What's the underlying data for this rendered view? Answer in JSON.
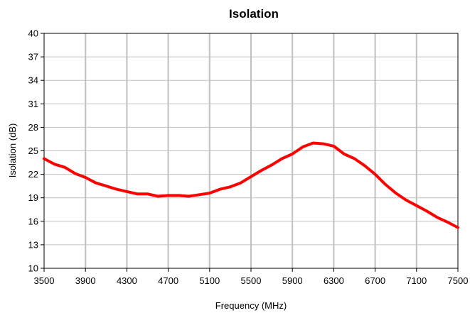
{
  "chart_data": {
    "type": "line",
    "title": "Isolation",
    "xlabel": "Frequency (MHz)",
    "ylabel": "Isolation (dB)",
    "xlim": [
      3500,
      7500
    ],
    "ylim": [
      10,
      40
    ],
    "xticks": [
      3500,
      3900,
      4300,
      4700,
      5100,
      5500,
      5900,
      6300,
      6700,
      7100,
      7500
    ],
    "yticks": [
      10,
      13,
      16,
      19,
      22,
      25,
      28,
      31,
      34,
      37,
      40
    ],
    "grid": {
      "vertical": true,
      "horizontal": true
    },
    "legend": "none",
    "colors": {
      "line": "#ff0000",
      "grid": "#c0c0c0",
      "frame": "#000000"
    },
    "series": [
      {
        "x": [
          3500,
          3600,
          3700,
          3800,
          3900,
          4000,
          4100,
          4200,
          4300,
          4400,
          4500,
          4600,
          4700,
          4800,
          4900,
          5000,
          5100,
          5200,
          5300,
          5400,
          5500,
          5600,
          5700,
          5800,
          5900,
          6000,
          6100,
          6200,
          6300,
          6400,
          6500,
          6600,
          6700,
          6800,
          6900,
          7000,
          7100,
          7200,
          7300,
          7400,
          7500
        ],
        "y": [
          24.0,
          23.3,
          22.9,
          22.1,
          21.6,
          20.9,
          20.5,
          20.1,
          19.8,
          19.5,
          19.5,
          19.2,
          19.3,
          19.3,
          19.2,
          19.4,
          19.6,
          20.1,
          20.4,
          20.9,
          21.7,
          22.5,
          23.2,
          24.0,
          24.6,
          25.5,
          26.0,
          25.9,
          25.6,
          24.6,
          24.0,
          23.1,
          22.0,
          20.7,
          19.6,
          18.7,
          18.0,
          17.3,
          16.5,
          15.9,
          15.2
        ]
      }
    ]
  }
}
